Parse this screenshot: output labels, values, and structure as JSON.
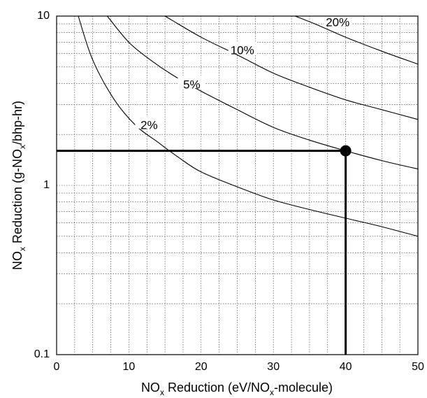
{
  "chart_data": {
    "type": "line",
    "xlabel": {
      "main": "NO",
      "sub1": "x",
      "mid": " Reduction  (eV/NO",
      "sub2": "x",
      "tail": "-molecule)"
    },
    "ylabel": {
      "main": "NO",
      "sub1": "x",
      "mid": " Reduction  (g-NO",
      "sub2": "x",
      "tail": "/bhp-hr)"
    },
    "xlim": [
      0,
      50
    ],
    "ylim": [
      0.1,
      10
    ],
    "yscale": "log",
    "grid": true,
    "x_ticks": [
      0,
      10,
      20,
      30,
      40,
      50
    ],
    "x_tick_labels": [
      "0",
      "10",
      "20",
      "30",
      "40",
      "50"
    ],
    "y_ticks": [
      0.1,
      1,
      10
    ],
    "y_tick_labels": [
      "0.1",
      "1",
      "10"
    ],
    "series": [
      {
        "name": "2%",
        "points": [
          [
            3,
            10
          ],
          [
            5,
            5.5
          ],
          [
            8,
            3.2
          ],
          [
            11,
            2.25
          ],
          [
            14,
            1.8
          ],
          [
            17,
            1.45
          ],
          [
            20,
            1.2
          ],
          [
            25,
            0.98
          ],
          [
            30,
            0.82
          ],
          [
            35,
            0.72
          ],
          [
            40,
            0.64
          ],
          [
            45,
            0.57
          ],
          [
            50,
            0.5
          ]
        ]
      },
      {
        "name": "5%",
        "points": [
          [
            7,
            10
          ],
          [
            10,
            7.0
          ],
          [
            13,
            5.5
          ],
          [
            16,
            4.5
          ],
          [
            20,
            3.6
          ],
          [
            25,
            2.8
          ],
          [
            30,
            2.2
          ],
          [
            35,
            1.85
          ],
          [
            40,
            1.6
          ],
          [
            45,
            1.4
          ],
          [
            50,
            1.25
          ]
        ]
      },
      {
        "name": "10%",
        "points": [
          [
            15,
            10
          ],
          [
            20,
            7.5
          ],
          [
            25,
            5.9
          ],
          [
            30,
            4.6
          ],
          [
            35,
            3.8
          ],
          [
            40,
            3.2
          ],
          [
            45,
            2.8
          ],
          [
            50,
            2.45
          ]
        ]
      },
      {
        "name": "20%",
        "points": [
          [
            33,
            10
          ],
          [
            36,
            8.9
          ],
          [
            40,
            7.5
          ],
          [
            45,
            6.2
          ],
          [
            50,
            5.2
          ]
        ]
      }
    ],
    "series_label_positions": {
      "2%": [
        12.8,
        2.25
      ],
      "5%": [
        18.7,
        3.9
      ],
      "10%": [
        25.7,
        6.2
      ],
      "20%": [
        38.9,
        9.1
      ]
    },
    "operating_point": {
      "x": 40,
      "y": 1.6
    }
  }
}
